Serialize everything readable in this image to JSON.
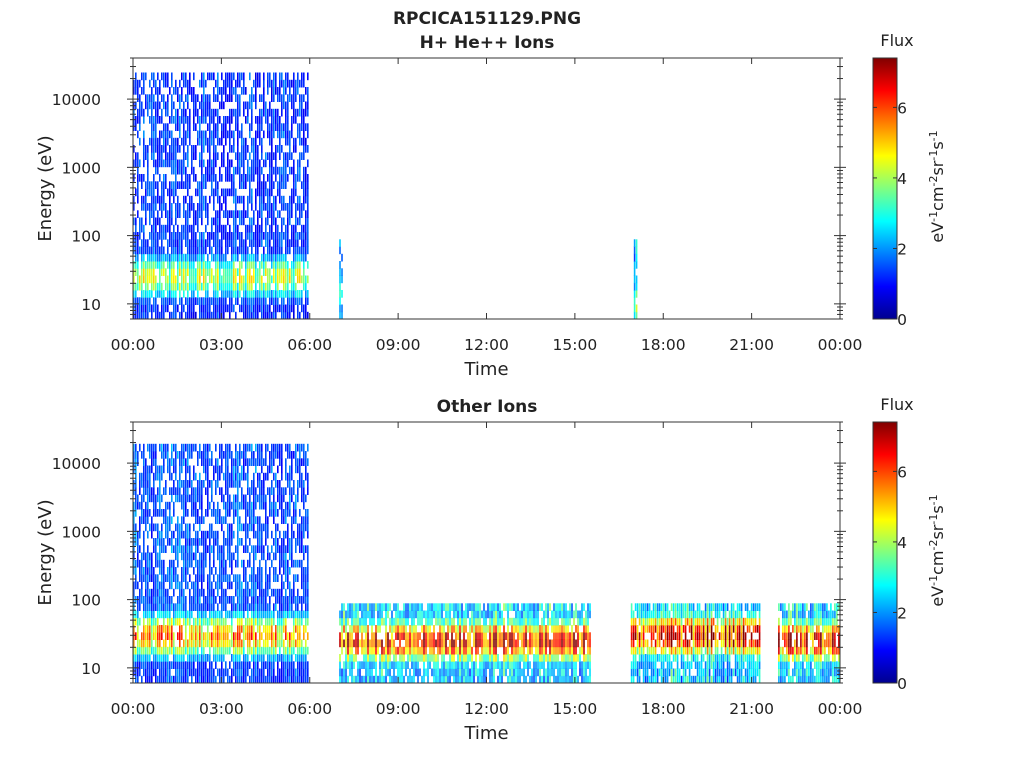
{
  "figure": {
    "title": "RPCICA151129.PNG"
  },
  "colormap": [
    "#00008f",
    "#0000ff",
    "#0080ff",
    "#00ffff",
    "#80ff80",
    "#ffff00",
    "#ff8000",
    "#ff0000",
    "#800000"
  ],
  "chart_data": [
    {
      "type": "heatmap",
      "title": "H+ He++ Ions",
      "xlabel": "Time",
      "ylabel": "Energy (eV)",
      "yscale": "log",
      "x_ticks": [
        "00:00",
        "03:00",
        "06:00",
        "09:00",
        "12:00",
        "15:00",
        "18:00",
        "21:00",
        "00:00"
      ],
      "x_range_hours": [
        0,
        24
      ],
      "y_ticks": [
        10,
        100,
        1000,
        10000
      ],
      "ylim": [
        6,
        40000
      ],
      "colorbar": {
        "title": "Flux",
        "label": "eV-1cm-2sr-1s-1",
        "ticks": [
          0,
          2,
          4,
          6
        ],
        "range": [
          0,
          7.4
        ]
      },
      "segments": [
        {
          "start_h": 0.0,
          "end_h": 5.95,
          "emin": 6,
          "emax": 25000,
          "peak_e": 25,
          "peak_flux": 4.3,
          "high_e_flux": 1.6
        },
        {
          "start_h": 7.0,
          "end_h": 7.08,
          "emin": 6,
          "emax": 80,
          "peak_e": 15,
          "peak_flux": 3.0,
          "high_e_flux": 2.5
        },
        {
          "start_h": 17.0,
          "end_h": 17.08,
          "emin": 6,
          "emax": 80,
          "peak_e": 10,
          "peak_flux": 3.8,
          "high_e_flux": 2.5
        }
      ]
    },
    {
      "type": "heatmap",
      "title": "Other Ions",
      "xlabel": "Time",
      "ylabel": "Energy (eV)",
      "yscale": "log",
      "x_ticks": [
        "00:00",
        "03:00",
        "06:00",
        "09:00",
        "12:00",
        "15:00",
        "18:00",
        "21:00",
        "00:00"
      ],
      "x_range_hours": [
        0,
        24
      ],
      "y_ticks": [
        10,
        100,
        1000,
        10000
      ],
      "ylim": [
        6,
        40000
      ],
      "colorbar": {
        "title": "Flux",
        "label": "eV-1cm-2sr-1s-1",
        "ticks": [
          0,
          2,
          4,
          6
        ],
        "range": [
          0,
          7.4
        ]
      },
      "segments": [
        {
          "start_h": 0.0,
          "end_h": 5.95,
          "emin": 6,
          "emax": 20000,
          "peak_e": 30,
          "peak_flux": 5.5,
          "high_e_flux": 1.8
        },
        {
          "start_h": 7.0,
          "end_h": 15.5,
          "emin": 6,
          "emax": 80,
          "peak_e": 25,
          "peak_flux": 6.8,
          "high_e_flux": 3.2
        },
        {
          "start_h": 16.9,
          "end_h": 21.3,
          "emin": 6,
          "emax": 80,
          "peak_e": 30,
          "peak_flux": 7.0,
          "high_e_flux": 3.2
        },
        {
          "start_h": 21.9,
          "end_h": 24.0,
          "emin": 6,
          "emax": 80,
          "peak_e": 25,
          "peak_flux": 6.8,
          "high_e_flux": 3.2
        }
      ]
    }
  ]
}
